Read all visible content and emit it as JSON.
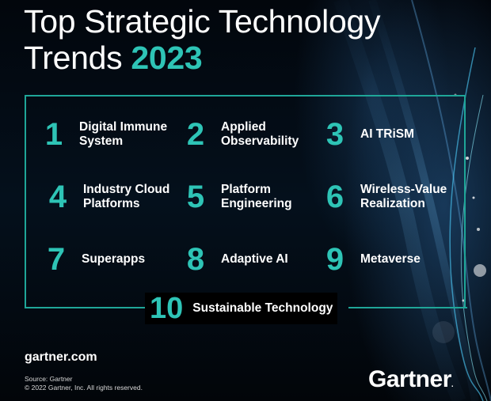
{
  "title": {
    "line1": "Top Strategic Technology",
    "line2_prefix": "Trends ",
    "year": "2023"
  },
  "trends": [
    {
      "number": "1",
      "label": "Digital Immune System"
    },
    {
      "number": "2",
      "label": "Applied Observability"
    },
    {
      "number": "3",
      "label": "AI TRiSM"
    },
    {
      "number": "4",
      "label": "Industry Cloud Platforms"
    },
    {
      "number": "5",
      "label": "Platform Engineering"
    },
    {
      "number": "6",
      "label": "Wireless-Value Realization"
    },
    {
      "number": "7",
      "label": "Superapps"
    },
    {
      "number": "8",
      "label": "Adaptive AI"
    },
    {
      "number": "9",
      "label": "Metaverse"
    },
    {
      "number": "10",
      "label": "Sustainable Technology"
    }
  ],
  "footer": {
    "site": "gartner.com",
    "source": "Source: Gartner",
    "copyright": "© 2022 Gartner, Inc. All rights reserved.",
    "logo": "Gartner",
    "logo_mark": "."
  },
  "colors": {
    "accent": "#2ec4b6",
    "frame": "#1fa698",
    "background": "#02060c"
  }
}
